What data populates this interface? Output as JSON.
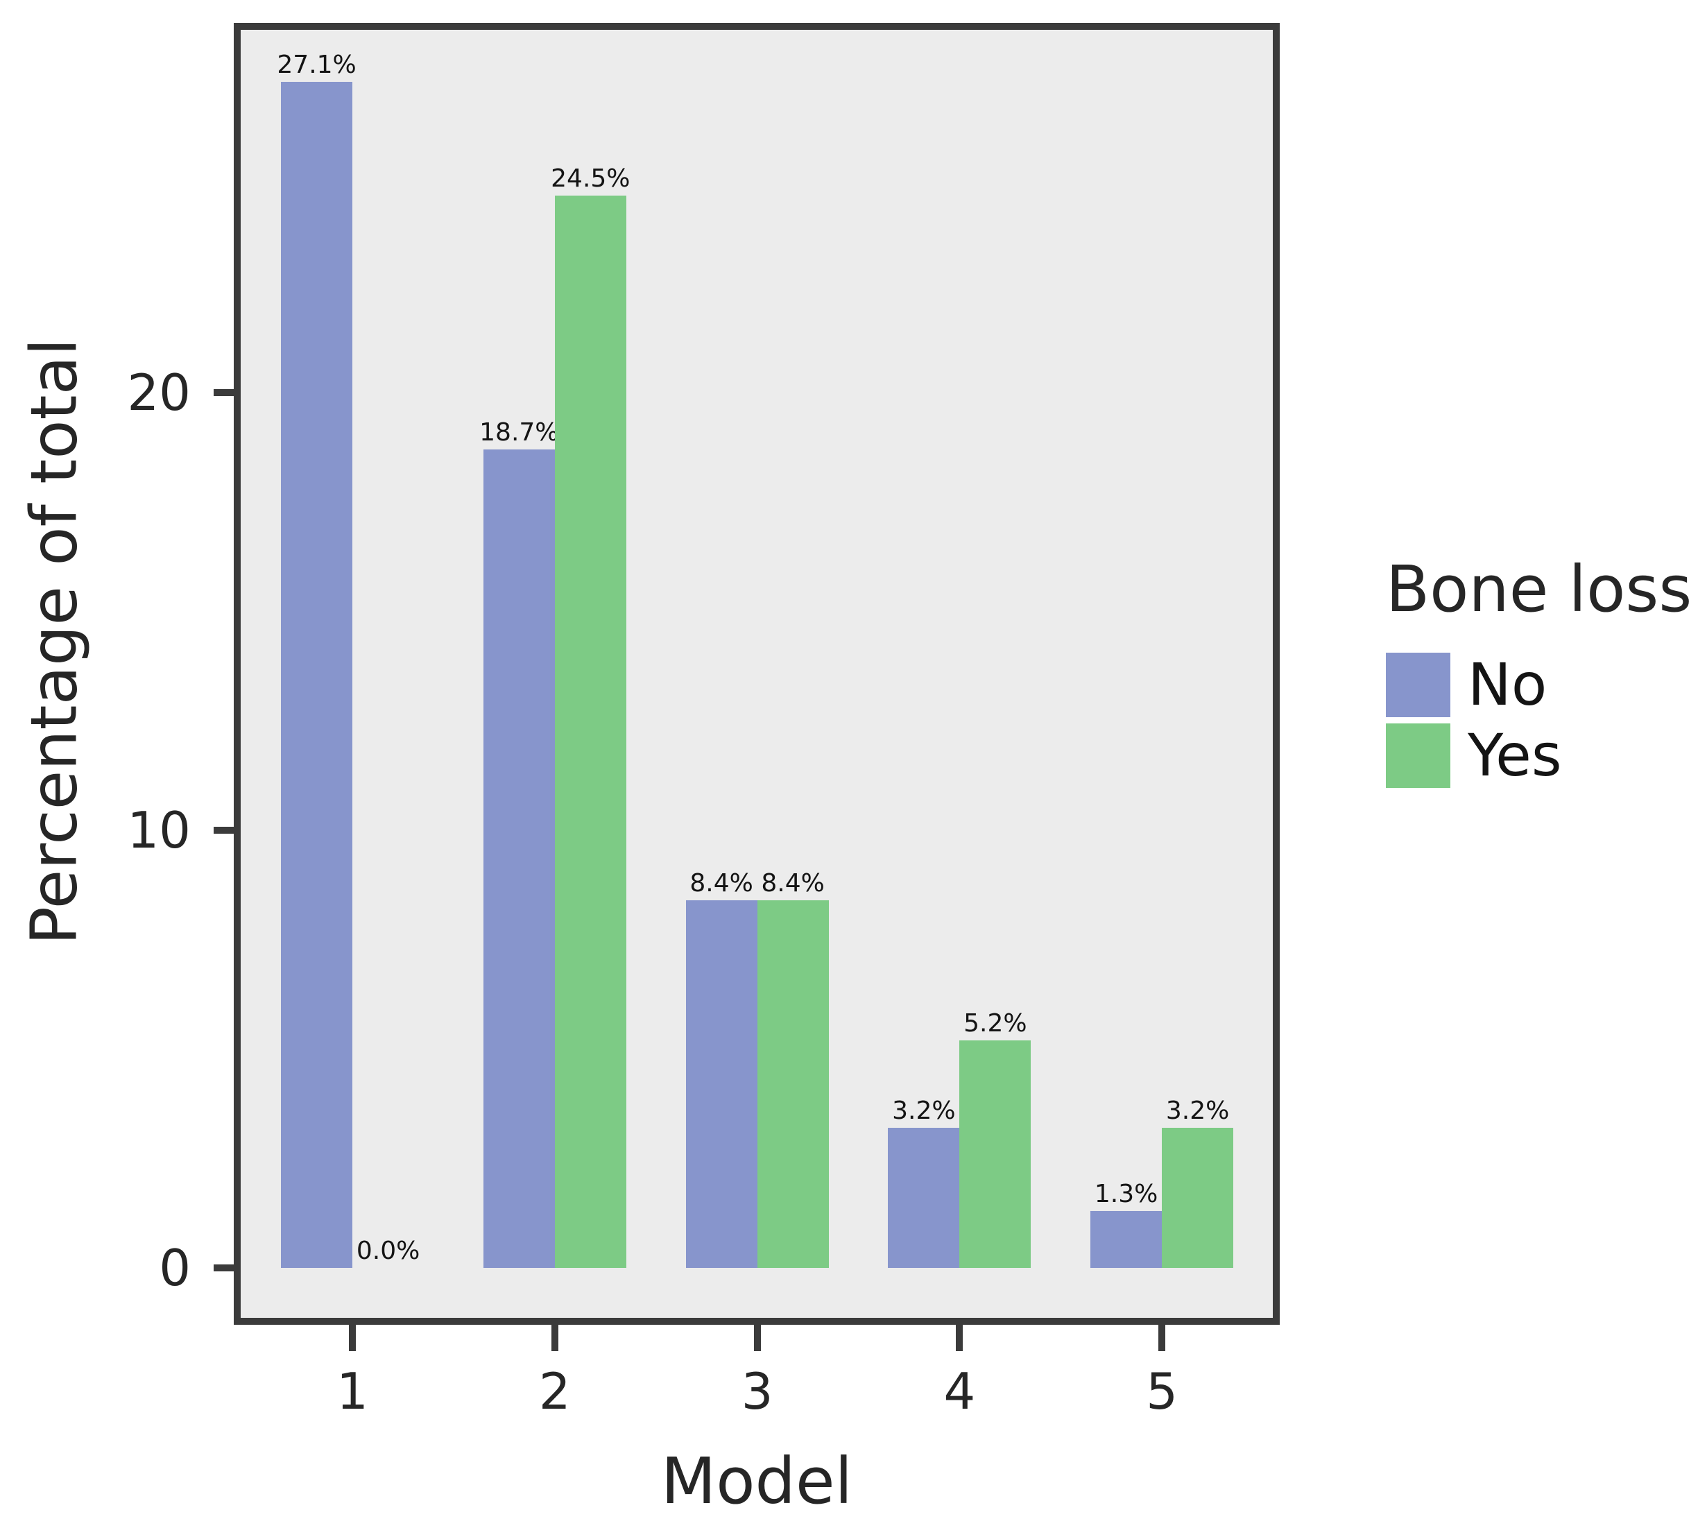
{
  "colors": {
    "no": "#8795CC",
    "yes": "#7DCB85",
    "panel_bg": "#ECECEC",
    "axis": "#3B3B3B",
    "text": "#262626",
    "label_text": "#141414"
  },
  "chart_data": {
    "type": "bar",
    "title": "",
    "xlabel": "Model",
    "ylabel": "Percentage of total",
    "categories": [
      "1",
      "2",
      "3",
      "4",
      "5"
    ],
    "series": [
      {
        "name": "No",
        "color_key": "no",
        "values": [
          27.1,
          18.7,
          8.4,
          3.2,
          1.3
        ]
      },
      {
        "name": "Yes",
        "color_key": "yes",
        "values": [
          0.0,
          24.5,
          8.4,
          5.2,
          3.2
        ]
      }
    ],
    "value_labels": [
      [
        "27.1%",
        "0.0%"
      ],
      [
        "18.7%",
        "24.5%"
      ],
      [
        "8.4%",
        "8.4%"
      ],
      [
        "3.2%",
        "5.2%"
      ],
      [
        "1.3%",
        "3.2%"
      ]
    ],
    "y_ticks": [
      0,
      10,
      20
    ],
    "y_tick_labels": [
      "0",
      "10",
      "20"
    ],
    "ylim": [
      -1.3,
      28.45
    ],
    "grid": false,
    "legend": {
      "title": "Bone loss",
      "entries": [
        "No",
        "Yes"
      ],
      "position": "right"
    }
  }
}
